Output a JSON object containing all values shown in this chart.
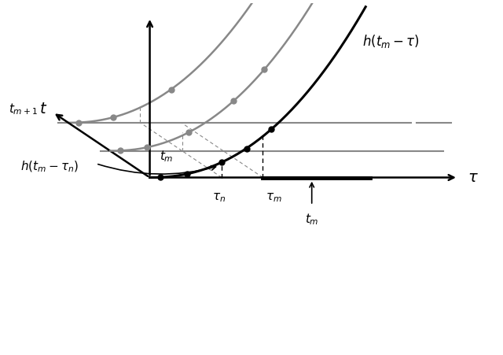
{
  "background_color": "#ffffff",
  "figure_size": [
    6.4,
    4.51
  ],
  "dpi": 100,
  "color_black": "#000000",
  "color_gray": "#888888",
  "color_dgray": "#999999",
  "label_tau": "$\\tau$",
  "label_t": "$t$",
  "label_h_tm_tau": "$h(t_m - \\tau)$",
  "label_h_tm_taun": "$h(t_m - \\tau_n)$",
  "label_tau_n": "$\\tau_n$",
  "label_tau_m": "$\\tau_m$",
  "label_tm_axis": "$t_m$",
  "label_tm_bottom": "$t_m$",
  "label_tm1": "$t_{m+1}$"
}
